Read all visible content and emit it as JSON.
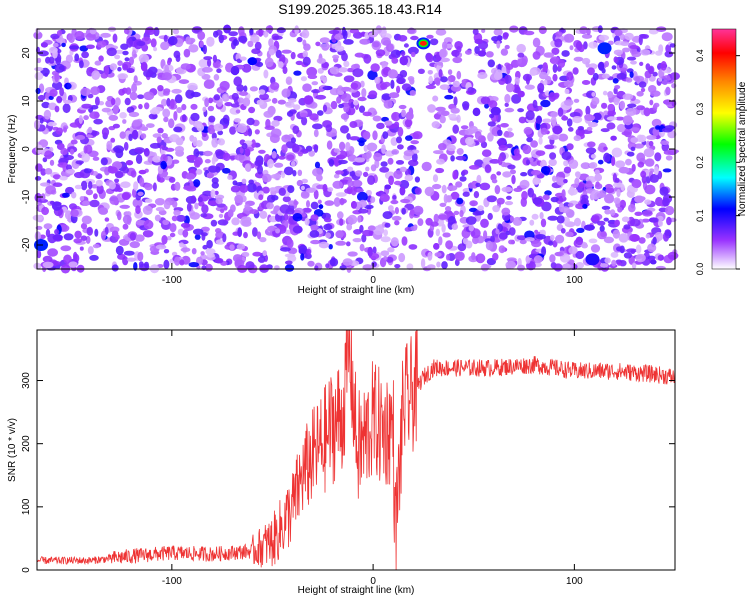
{
  "title": "S199.2025.365.18.43.R14",
  "chart_data": [
    {
      "type": "heatmap",
      "xlabel": "Height of straight line (km)",
      "ylabel": "Frequency (Hz)",
      "xlim": [
        -167,
        150
      ],
      "ylim": [
        -25,
        25
      ],
      "x_ticks": [
        -100,
        0,
        100
      ],
      "y_ticks": [
        -20,
        -10,
        0,
        10,
        20
      ],
      "colorbar": {
        "label": "Normalized spectral amplitude",
        "range": [
          0.0,
          0.45
        ],
        "ticks": [
          0.0,
          0.1,
          0.2,
          0.3,
          0.4
        ],
        "colors": [
          "#ffffff",
          "#9933ff",
          "#0000ff",
          "#00ffff",
          "#00ff00",
          "#ffff00",
          "#ff8800",
          "#ff0000",
          "#ff3399"
        ]
      },
      "background_level": 0.07,
      "clear_band": {
        "x": 25,
        "label_hint": "white vertical trace"
      },
      "hotspots": [
        {
          "x": 25,
          "y": 22,
          "value": 0.38
        },
        {
          "x": -165,
          "y": -20,
          "value": 0.12
        },
        {
          "x": 109,
          "y": -23,
          "value": 0.1
        },
        {
          "x": 115,
          "y": 21,
          "value": 0.12
        }
      ]
    },
    {
      "type": "line",
      "xlabel": "Height of straight line (km)",
      "ylabel": "SNR (10 * v/v)",
      "xlim": [
        -167,
        150
      ],
      "ylim": [
        0,
        380
      ],
      "x_ticks": [
        -100,
        0,
        100
      ],
      "y_ticks": [
        0,
        100,
        200,
        300
      ],
      "series": [
        {
          "color": "#ee3333",
          "x": [
            -167,
            -140,
            -120,
            -100,
            -80,
            -60,
            -50,
            -45,
            -40,
            -35,
            -30,
            -25,
            -20,
            -15,
            -12,
            -10,
            -8,
            -5,
            0,
            5,
            10,
            11,
            15,
            20,
            25,
            30,
            40,
            60,
            80,
            100,
            120,
            140,
            150
          ],
          "values": [
            15,
            15,
            22,
            27,
            25,
            30,
            45,
            70,
            100,
            150,
            180,
            200,
            230,
            245,
            350,
            280,
            190,
            200,
            240,
            220,
            230,
            45,
            260,
            280,
            305,
            320,
            320,
            320,
            325,
            315,
            315,
            310,
            305
          ]
        }
      ]
    }
  ]
}
